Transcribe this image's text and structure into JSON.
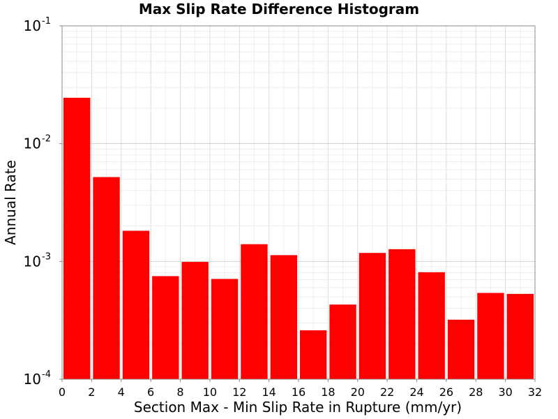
{
  "chart_data": {
    "type": "bar",
    "title": "Max Slip Rate Difference Histogram",
    "xlabel": "Section Max - Min Slip Rate in Rupture (mm/yr)",
    "ylabel": "Annual Rate",
    "yscale": "log",
    "ylim": [
      0.0001,
      0.1
    ],
    "xlim": [
      0,
      32
    ],
    "bin_width": 2,
    "xticks": [
      "0",
      "2",
      "4",
      "6",
      "8",
      "10",
      "12",
      "14",
      "16",
      "18",
      "20",
      "22",
      "24",
      "26",
      "28",
      "30",
      "32"
    ],
    "yticks": [
      {
        "base": "10",
        "exp": "-1",
        "value": 0.1
      },
      {
        "base": "10",
        "exp": "-2",
        "value": 0.01
      },
      {
        "base": "10",
        "exp": "-3",
        "value": 0.001
      },
      {
        "base": "10",
        "exp": "-4",
        "value": 0.0001
      }
    ],
    "bins": [
      {
        "x0": 0,
        "x1": 2,
        "value": 0.0245
      },
      {
        "x0": 2,
        "x1": 4,
        "value": 0.0052
      },
      {
        "x0": 4,
        "x1": 6,
        "value": 0.00182
      },
      {
        "x0": 6,
        "x1": 8,
        "value": 0.00075
      },
      {
        "x0": 8,
        "x1": 10,
        "value": 0.00099
      },
      {
        "x0": 10,
        "x1": 12,
        "value": 0.00071
      },
      {
        "x0": 12,
        "x1": 14,
        "value": 0.0014
      },
      {
        "x0": 14,
        "x1": 16,
        "value": 0.00113
      },
      {
        "x0": 16,
        "x1": 18,
        "value": 0.00026
      },
      {
        "x0": 18,
        "x1": 20,
        "value": 0.00043
      },
      {
        "x0": 20,
        "x1": 22,
        "value": 0.00118
      },
      {
        "x0": 22,
        "x1": 24,
        "value": 0.00127
      },
      {
        "x0": 24,
        "x1": 26,
        "value": 0.00081
      },
      {
        "x0": 26,
        "x1": 28,
        "value": 0.00032
      },
      {
        "x0": 28,
        "x1": 30,
        "value": 0.00054
      },
      {
        "x0": 30,
        "x1": 32,
        "value": 0.00053
      }
    ],
    "grid": true,
    "bar_color": "#ff0000",
    "background": "#ffffff"
  }
}
